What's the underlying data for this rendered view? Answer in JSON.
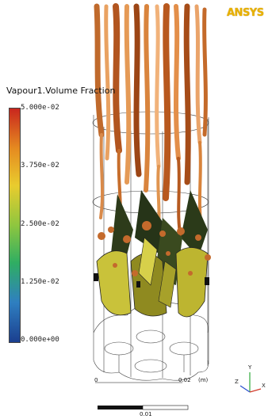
{
  "logo": {
    "text": "ANSYS"
  },
  "legend": {
    "title": "Vapour1.Volume Fraction",
    "ticks": [
      "5.000e-02",
      "3.750e-02",
      "2.500e-02",
      "1.250e-02",
      "0.000e+00"
    ],
    "colormap": [
      "#c9261e",
      "#e58a20",
      "#e9cc2e",
      "#8ec63f",
      "#2fae62",
      "#2f7fc1",
      "#1b3f8f"
    ]
  },
  "scale_bar": {
    "zero": "0",
    "max": "0.02",
    "unit": "(m)",
    "mid": "0.01"
  },
  "axis_triad": {
    "y": "Y",
    "z": "Z",
    "x": "X"
  }
}
